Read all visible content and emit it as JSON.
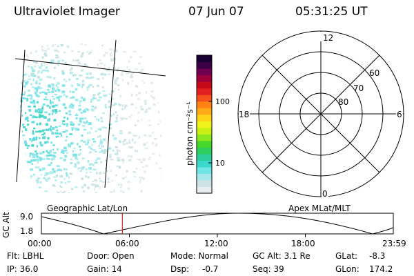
{
  "header": {
    "title": "Ultraviolet Imager",
    "date": "07 Jun 07",
    "time": "05:31:25 UT"
  },
  "colorbar": {
    "unit_label": "photon cm⁻²s⁻¹",
    "tick_labels": [
      "100",
      "10"
    ],
    "colors": [
      "#e8eef0",
      "#cfe3e6",
      "#a8e8ec",
      "#6fe6e6",
      "#3cd8cc",
      "#2ccf9a",
      "#2ecf5e",
      "#46d828",
      "#8ce81e",
      "#c8f014",
      "#f0f41a",
      "#ffd21a",
      "#ffaa18",
      "#ff8214",
      "#f4501c",
      "#e02020",
      "#c40a18",
      "#a0003a",
      "#700050",
      "#3c0046",
      "#1a0030"
    ]
  },
  "dial": {
    "mlt_labels": [
      "12",
      "6",
      "18",
      "0"
    ],
    "lat_labels": [
      "60",
      "70",
      "80"
    ]
  },
  "orbit_plot": {
    "left_label": "Geographic Lat/Lon",
    "right_label": "Apex MLat/MLT",
    "y_axis_label": "GC Alt",
    "y_ticks": [
      "9.0",
      "1.8"
    ],
    "x_ticks": [
      "00:00",
      "06:00",
      "12:00",
      "18:00",
      "23:59"
    ],
    "marker_time_hours": 5.52
  },
  "info": {
    "filter": "Flt: LBHL",
    "door": "Door: Open",
    "mode": "Mode: Normal",
    "gc_alt": "GC Alt: 3.1 Re",
    "glat_label": "GLat:",
    "glat_value": "-8.3",
    "ip": "IP: 36.0",
    "gain": "Gain: 14",
    "dsp_label": "Dsp:",
    "dsp_value": "-0.7",
    "seq": "Seq: 39",
    "glon_label": "GLon:",
    "glon_value": "174.2"
  }
}
